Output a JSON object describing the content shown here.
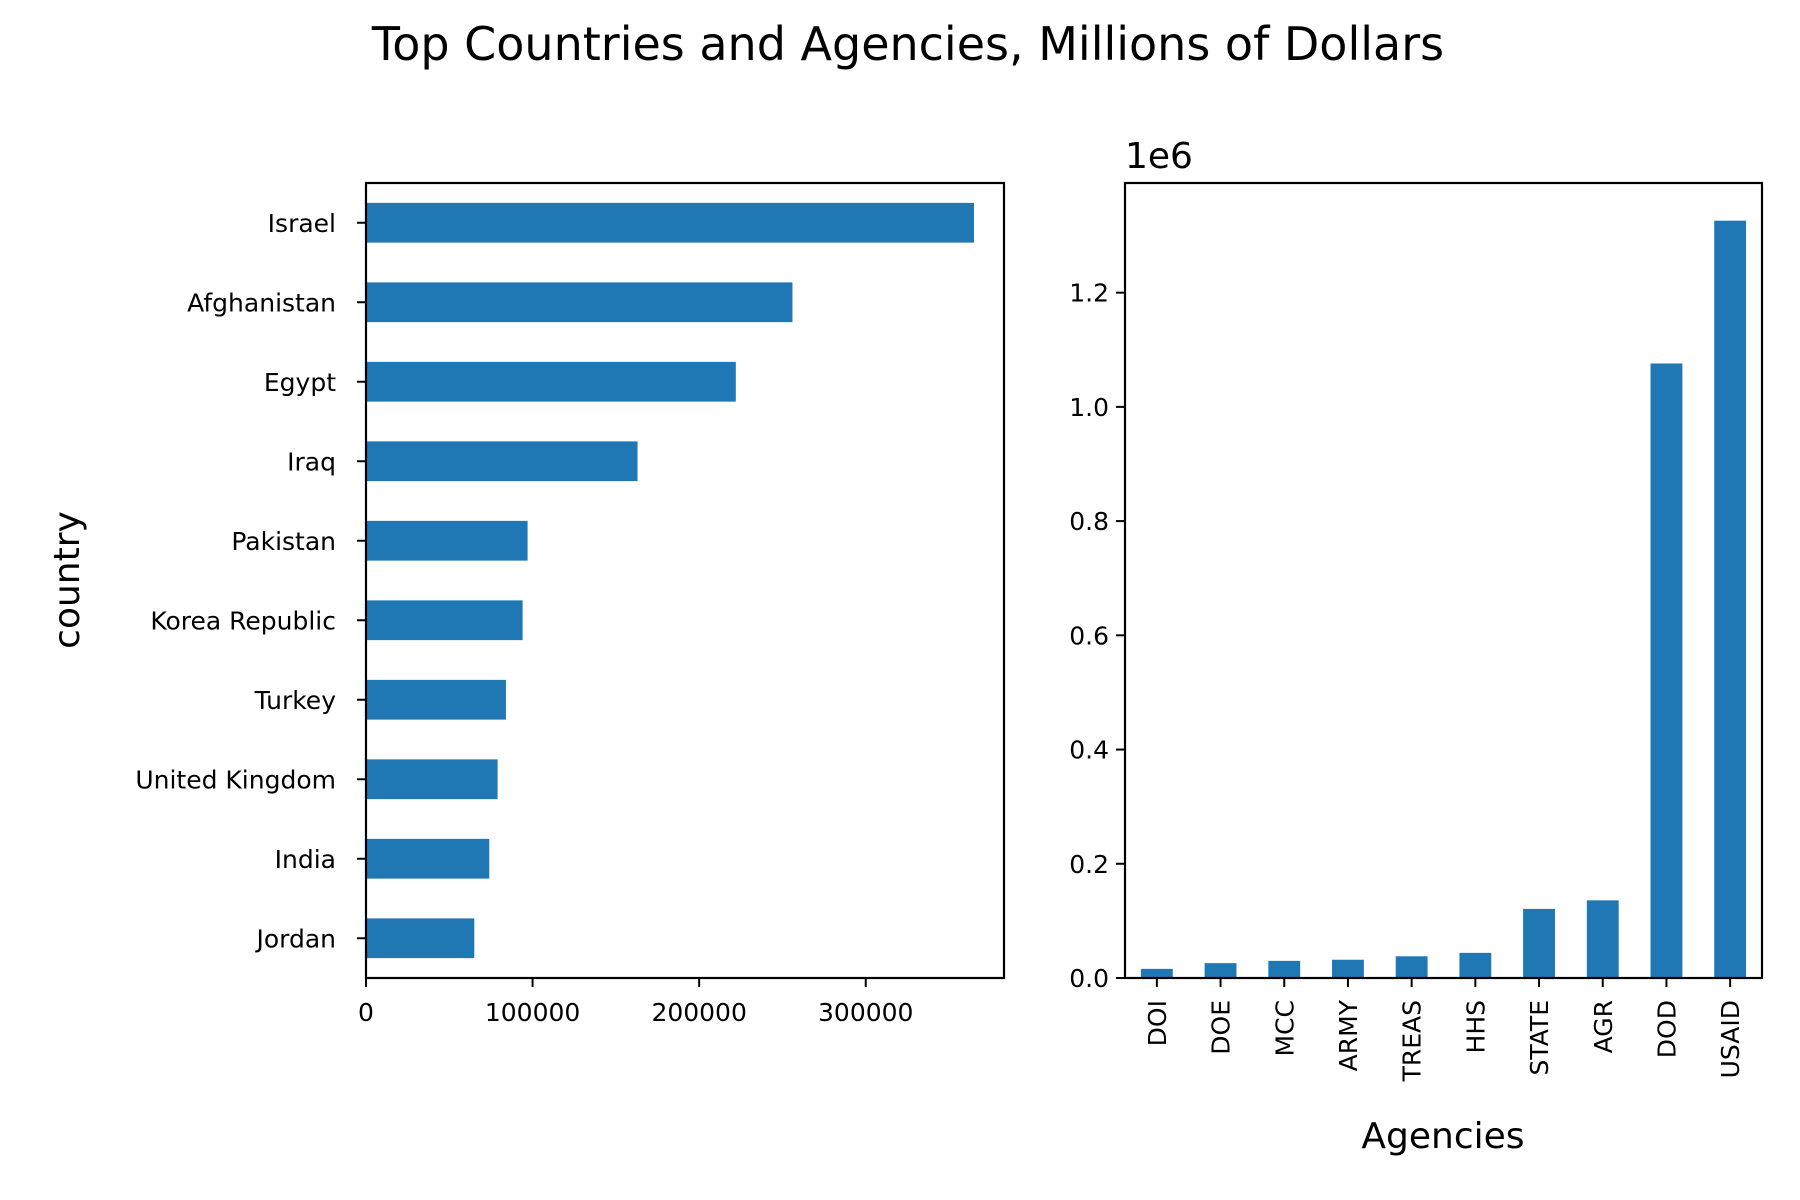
{
  "figure": {
    "title": "Top Countries and Agencies, Millions of Dollars",
    "bar_color": "#1f77b4"
  },
  "chart_data": [
    {
      "type": "bar",
      "orientation": "horizontal",
      "title": "",
      "xlabel": "",
      "ylabel": "country",
      "categories": [
        "Jordan",
        "India",
        "United Kingdom",
        "Turkey",
        "Korea Republic",
        "Pakistan",
        "Iraq",
        "Egypt",
        "Afghanistan",
        "Israel"
      ],
      "values": [
        65000,
        74000,
        79000,
        84000,
        94000,
        97000,
        163000,
        222000,
        256000,
        365000
      ],
      "xlim": [
        0,
        383000
      ],
      "xticks": [
        0,
        100000,
        200000,
        300000
      ],
      "xtick_labels": [
        "0",
        "100000",
        "200000",
        "300000"
      ],
      "grid": false,
      "legend": "none"
    },
    {
      "type": "bar",
      "orientation": "vertical",
      "title": "",
      "xlabel": "Agencies",
      "ylabel": "",
      "offset_text": "1e6",
      "categories": [
        "DOI",
        "DOE",
        "MCC",
        "ARMY",
        "TREAS",
        "HHS",
        "STATE",
        "AGR",
        "DOD",
        "USAID"
      ],
      "values": [
        16000,
        26000,
        30000,
        32000,
        38000,
        44000,
        121000,
        136000,
        1076000,
        1326000
      ],
      "ylim": [
        0,
        1392000
      ],
      "yticks": [
        0,
        200000,
        400000,
        600000,
        800000,
        1000000,
        1200000
      ],
      "ytick_labels": [
        "0.0",
        "0.2",
        "0.4",
        "0.6",
        "0.8",
        "1.0",
        "1.2"
      ],
      "grid": false,
      "legend": "none"
    }
  ]
}
